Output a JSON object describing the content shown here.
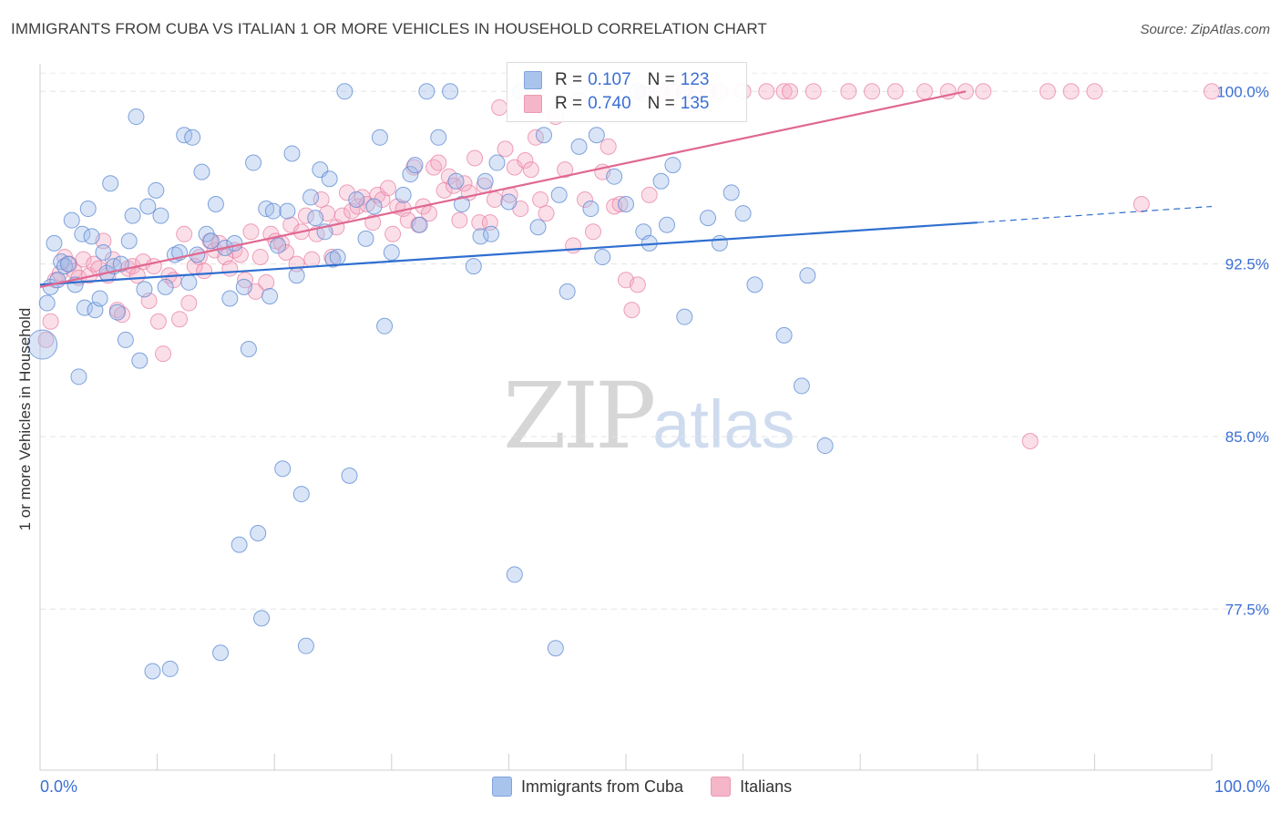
{
  "header": {
    "title": "IMMIGRANTS FROM CUBA VS ITALIAN 1 OR MORE VEHICLES IN HOUSEHOLD CORRELATION CHART",
    "source": "Source: ZipAtlas.com"
  },
  "watermark": {
    "zip": "ZIP",
    "atlas": "atlas"
  },
  "legend": {
    "rows": [
      {
        "r_label": "R =",
        "r_value": "0.107",
        "n_label": "N =",
        "n_value": "123",
        "color": "#a9c4ec"
      },
      {
        "r_label": "R =",
        "r_value": "0.740",
        "n_label": "N =",
        "n_value": "135",
        "color": "#f4b6c8"
      }
    ]
  },
  "bottom_legend": {
    "items": [
      {
        "label": "Immigrants from Cuba",
        "color": "#a9c4ec"
      },
      {
        "label": "Italians",
        "color": "#f4b6c8"
      }
    ]
  },
  "chart_data": {
    "type": "scatter",
    "title": "IMMIGRANTS FROM CUBA VS ITALIAN 1 OR MORE VEHICLES IN HOUSEHOLD CORRELATION CHART",
    "xlabel": "",
    "ylabel": "1 or more Vehicles in Household",
    "xlim": [
      0,
      100
    ],
    "ylim": [
      70.5,
      101.2
    ],
    "x_tick_labels": [
      "0.0%",
      "100.0%"
    ],
    "y_ticks": [
      77.5,
      85.0,
      92.5,
      100.0
    ],
    "y_tick_labels": [
      "77.5%",
      "85.0%",
      "92.5%",
      "100.0%"
    ],
    "grid": "horizontal dashed",
    "legend_position": "top-center",
    "colors": {
      "cuba": "#6f9be0",
      "italians": "#ee8fae",
      "cuba_line": "#2f6fd0",
      "italians_line": "#e06892"
    },
    "series": [
      {
        "name": "Immigrants from Cuba",
        "trend": {
          "x": [
            0,
            80,
            100
          ],
          "y": [
            91.6,
            94.3,
            95.0
          ],
          "dashed_from": 80
        },
        "points": [
          [
            0.2,
            89.0
          ],
          [
            0.6,
            90.8
          ],
          [
            0.9,
            91.5
          ],
          [
            1.2,
            93.4
          ],
          [
            1.5,
            91.8
          ],
          [
            1.8,
            92.6
          ],
          [
            2.1,
            92.4
          ],
          [
            2.4,
            92.5
          ],
          [
            2.7,
            94.4
          ],
          [
            3.0,
            91.6
          ],
          [
            3.3,
            87.6
          ],
          [
            3.6,
            93.8
          ],
          [
            3.8,
            90.6
          ],
          [
            4.1,
            94.9
          ],
          [
            4.4,
            93.7
          ],
          [
            4.7,
            90.5
          ],
          [
            5.1,
            91.0
          ],
          [
            5.4,
            93.0
          ],
          [
            5.7,
            92.1
          ],
          [
            6.0,
            96.0
          ],
          [
            6.3,
            92.4
          ],
          [
            6.6,
            90.4
          ],
          [
            6.9,
            92.5
          ],
          [
            7.3,
            89.2
          ],
          [
            7.6,
            93.5
          ],
          [
            7.9,
            94.6
          ],
          [
            8.2,
            98.9
          ],
          [
            8.5,
            88.3
          ],
          [
            8.9,
            91.4
          ],
          [
            9.2,
            95.0
          ],
          [
            9.6,
            74.8
          ],
          [
            9.9,
            95.7
          ],
          [
            10.3,
            94.6
          ],
          [
            10.7,
            91.5
          ],
          [
            11.1,
            74.9
          ],
          [
            11.5,
            92.9
          ],
          [
            11.9,
            93.0
          ],
          [
            12.3,
            98.1
          ],
          [
            12.7,
            91.7
          ],
          [
            13.0,
            98.0
          ],
          [
            13.4,
            92.9
          ],
          [
            13.8,
            96.5
          ],
          [
            14.2,
            93.8
          ],
          [
            14.6,
            93.5
          ],
          [
            15.0,
            95.1
          ],
          [
            15.4,
            75.6
          ],
          [
            15.8,
            93.2
          ],
          [
            16.2,
            91.0
          ],
          [
            16.6,
            93.4
          ],
          [
            17.0,
            80.3
          ],
          [
            17.4,
            91.5
          ],
          [
            17.8,
            88.8
          ],
          [
            18.2,
            96.9
          ],
          [
            18.6,
            80.8
          ],
          [
            18.9,
            77.1
          ],
          [
            19.3,
            94.9
          ],
          [
            19.6,
            91.1
          ],
          [
            19.9,
            94.8
          ],
          [
            20.3,
            93.3
          ],
          [
            20.7,
            83.6
          ],
          [
            21.1,
            94.8
          ],
          [
            21.5,
            97.3
          ],
          [
            21.9,
            92.0
          ],
          [
            22.3,
            82.5
          ],
          [
            22.7,
            75.9
          ],
          [
            23.1,
            95.4
          ],
          [
            23.5,
            94.5
          ],
          [
            23.9,
            96.6
          ],
          [
            24.3,
            93.9
          ],
          [
            24.7,
            96.2
          ],
          [
            25.0,
            92.7
          ],
          [
            25.4,
            92.8
          ],
          [
            26.0,
            100.0
          ],
          [
            26.4,
            83.3
          ],
          [
            27.0,
            95.3
          ],
          [
            27.8,
            93.6
          ],
          [
            28.5,
            95.0
          ],
          [
            29.0,
            98.0
          ],
          [
            29.4,
            89.8
          ],
          [
            30.0,
            93.0
          ],
          [
            31.0,
            95.5
          ],
          [
            31.6,
            96.4
          ],
          [
            32.0,
            96.8
          ],
          [
            32.4,
            94.2
          ],
          [
            33.0,
            100.0
          ],
          [
            34.0,
            98.0
          ],
          [
            35.0,
            100.0
          ],
          [
            35.5,
            96.1
          ],
          [
            36.0,
            95.1
          ],
          [
            37.0,
            92.4
          ],
          [
            37.6,
            93.7
          ],
          [
            38.0,
            96.1
          ],
          [
            38.5,
            93.8
          ],
          [
            39.0,
            96.9
          ],
          [
            40.0,
            95.2
          ],
          [
            40.5,
            79.0
          ],
          [
            41.0,
            100.0
          ],
          [
            42.5,
            94.1
          ],
          [
            43.0,
            98.1
          ],
          [
            44.0,
            75.8
          ],
          [
            44.3,
            95.5
          ],
          [
            45.0,
            91.3
          ],
          [
            46.0,
            97.6
          ],
          [
            47.0,
            94.9
          ],
          [
            47.5,
            98.1
          ],
          [
            48.0,
            92.8
          ],
          [
            49.0,
            96.3
          ],
          [
            50.0,
            95.1
          ],
          [
            51.0,
            100.0
          ],
          [
            51.5,
            93.9
          ],
          [
            52.0,
            93.4
          ],
          [
            53.0,
            96.1
          ],
          [
            53.5,
            94.2
          ],
          [
            54.0,
            96.8
          ],
          [
            55.0,
            90.2
          ],
          [
            57.0,
            94.5
          ],
          [
            58.0,
            93.4
          ],
          [
            59.0,
            95.6
          ],
          [
            60.0,
            94.7
          ],
          [
            61.0,
            91.6
          ],
          [
            63.5,
            89.4
          ],
          [
            65.0,
            87.2
          ],
          [
            65.5,
            92.0
          ],
          [
            67.0,
            84.6
          ]
        ]
      },
      {
        "name": "Italians",
        "trend": {
          "x": [
            0,
            79
          ],
          "y": [
            91.5,
            100.0
          ]
        },
        "points": [
          [
            0.5,
            89.2
          ],
          [
            0.9,
            90.0
          ],
          [
            1.3,
            91.8
          ],
          [
            1.7,
            92.1
          ],
          [
            2.1,
            92.8
          ],
          [
            2.5,
            92.5
          ],
          [
            2.9,
            92.2
          ],
          [
            3.3,
            91.9
          ],
          [
            3.7,
            92.7
          ],
          [
            4.2,
            92.0
          ],
          [
            4.6,
            92.5
          ],
          [
            5.0,
            92.3
          ],
          [
            5.4,
            93.5
          ],
          [
            5.8,
            92.0
          ],
          [
            6.2,
            92.7
          ],
          [
            6.6,
            90.5
          ],
          [
            7.0,
            90.3
          ],
          [
            7.5,
            92.3
          ],
          [
            7.9,
            92.4
          ],
          [
            8.3,
            92.0
          ],
          [
            8.8,
            92.6
          ],
          [
            9.3,
            90.9
          ],
          [
            9.7,
            92.4
          ],
          [
            10.1,
            90.0
          ],
          [
            10.5,
            88.6
          ],
          [
            11.0,
            92.0
          ],
          [
            11.4,
            91.8
          ],
          [
            11.9,
            90.1
          ],
          [
            12.3,
            93.8
          ],
          [
            12.7,
            90.8
          ],
          [
            13.2,
            92.4
          ],
          [
            13.6,
            92.8
          ],
          [
            14.0,
            92.2
          ],
          [
            14.5,
            93.5
          ],
          [
            14.9,
            93.1
          ],
          [
            15.3,
            93.4
          ],
          [
            15.8,
            92.8
          ],
          [
            16.2,
            92.3
          ],
          [
            16.6,
            93.1
          ],
          [
            17.1,
            92.9
          ],
          [
            17.5,
            91.8
          ],
          [
            18.0,
            93.9
          ],
          [
            18.4,
            91.3
          ],
          [
            18.8,
            92.8
          ],
          [
            19.3,
            91.7
          ],
          [
            19.7,
            93.8
          ],
          [
            20.1,
            93.5
          ],
          [
            20.6,
            93.4
          ],
          [
            21.0,
            93.0
          ],
          [
            21.4,
            94.2
          ],
          [
            21.9,
            92.5
          ],
          [
            22.3,
            93.9
          ],
          [
            22.7,
            94.6
          ],
          [
            23.2,
            92.7
          ],
          [
            23.6,
            93.8
          ],
          [
            24.0,
            95.3
          ],
          [
            24.5,
            94.7
          ],
          [
            24.9,
            92.8
          ],
          [
            25.3,
            94.1
          ],
          [
            25.8,
            94.6
          ],
          [
            26.2,
            95.6
          ],
          [
            26.6,
            94.8
          ],
          [
            27.1,
            95.0
          ],
          [
            27.5,
            95.4
          ],
          [
            27.9,
            95.1
          ],
          [
            28.4,
            94.3
          ],
          [
            28.8,
            95.5
          ],
          [
            29.2,
            95.3
          ],
          [
            29.7,
            95.8
          ],
          [
            30.1,
            93.8
          ],
          [
            30.5,
            95.0
          ],
          [
            31.0,
            94.9
          ],
          [
            31.4,
            94.4
          ],
          [
            31.9,
            96.7
          ],
          [
            32.3,
            94.2
          ],
          [
            32.7,
            95.0
          ],
          [
            33.2,
            94.7
          ],
          [
            33.6,
            96.7
          ],
          [
            34.0,
            96.9
          ],
          [
            34.5,
            95.7
          ],
          [
            34.9,
            96.3
          ],
          [
            35.3,
            95.9
          ],
          [
            35.8,
            94.4
          ],
          [
            36.2,
            96.0
          ],
          [
            36.6,
            95.6
          ],
          [
            37.1,
            97.1
          ],
          [
            37.5,
            94.3
          ],
          [
            37.9,
            95.9
          ],
          [
            38.4,
            94.3
          ],
          [
            38.8,
            95.3
          ],
          [
            39.2,
            99.3
          ],
          [
            39.7,
            97.5
          ],
          [
            40.1,
            95.5
          ],
          [
            40.5,
            96.7
          ],
          [
            41.0,
            94.9
          ],
          [
            41.4,
            97.0
          ],
          [
            41.9,
            96.6
          ],
          [
            42.3,
            98.0
          ],
          [
            42.7,
            95.3
          ],
          [
            43.2,
            94.7
          ],
          [
            44.0,
            98.9
          ],
          [
            44.8,
            96.6
          ],
          [
            45.5,
            93.3
          ],
          [
            46.0,
            99.6
          ],
          [
            46.5,
            95.3
          ],
          [
            47.2,
            93.9
          ],
          [
            48.0,
            96.5
          ],
          [
            48.5,
            97.6
          ],
          [
            49.0,
            95.0
          ],
          [
            49.5,
            95.1
          ],
          [
            50.0,
            91.8
          ],
          [
            50.5,
            90.5
          ],
          [
            51.0,
            91.6
          ],
          [
            51.5,
            99.9
          ],
          [
            52.0,
            95.5
          ],
          [
            53.0,
            100.0
          ],
          [
            54.0,
            100.0
          ],
          [
            55.0,
            100.0
          ],
          [
            56.0,
            100.0
          ],
          [
            57.0,
            100.0
          ],
          [
            58.0,
            100.0
          ],
          [
            60.0,
            100.0
          ],
          [
            62.0,
            100.0
          ],
          [
            63.5,
            100.0
          ],
          [
            64.0,
            100.0
          ],
          [
            66.0,
            100.0
          ],
          [
            69.0,
            100.0
          ],
          [
            71.0,
            100.0
          ],
          [
            73.0,
            100.0
          ],
          [
            75.5,
            100.0
          ],
          [
            77.5,
            100.0
          ],
          [
            79.0,
            100.0
          ],
          [
            80.5,
            100.0
          ],
          [
            84.5,
            84.8
          ],
          [
            86.0,
            100.0
          ],
          [
            88.0,
            100.0
          ],
          [
            90.0,
            100.0
          ],
          [
            94.0,
            95.1
          ],
          [
            100.0,
            100.0
          ]
        ]
      }
    ]
  }
}
